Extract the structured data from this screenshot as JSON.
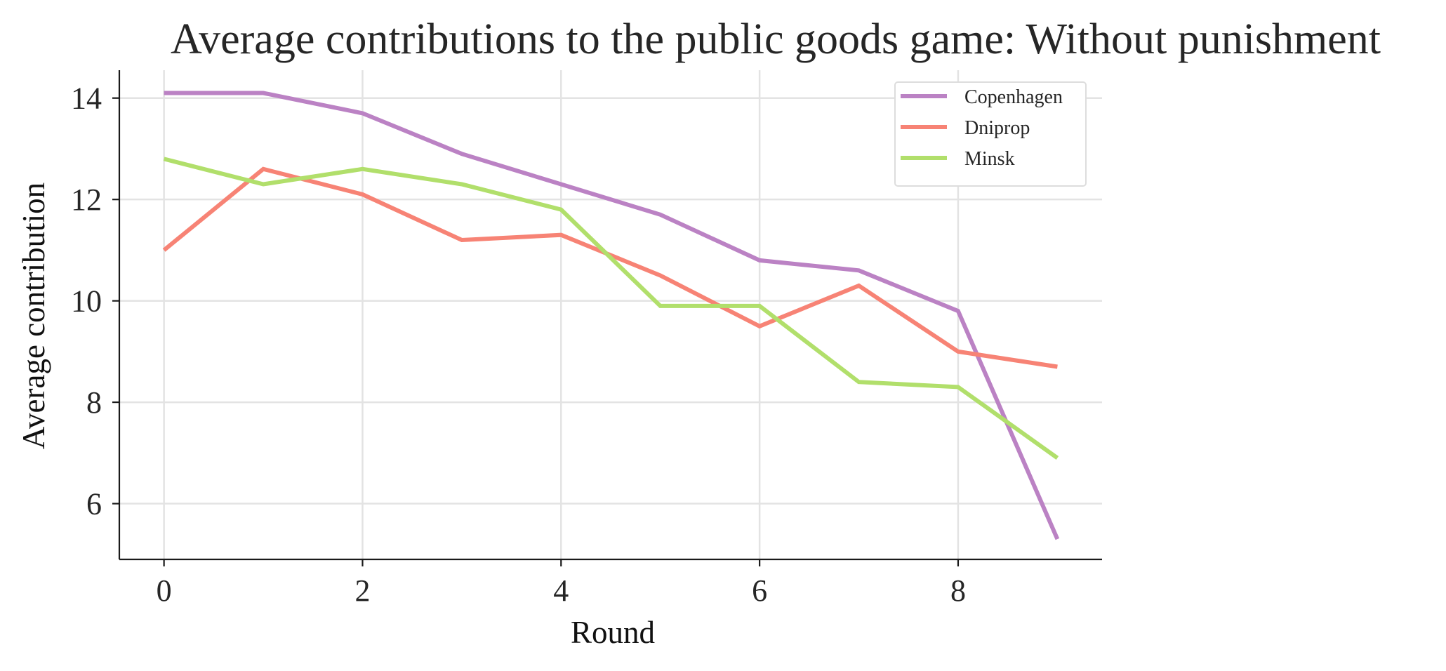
{
  "chart_data": {
    "type": "line",
    "title": "Average contributions to the public goods game: Without punishment",
    "xlabel": "Round",
    "ylabel": "Average contribution",
    "x": [
      0,
      1,
      2,
      3,
      4,
      5,
      6,
      7,
      8,
      9
    ],
    "xlim": [
      -0.45,
      9.45
    ],
    "ylim": [
      4.9,
      14.55
    ],
    "xticks": [
      0,
      2,
      4,
      6,
      8
    ],
    "yticks": [
      6,
      8,
      10,
      12,
      14
    ],
    "grid": true,
    "legend_position": "top-right",
    "series": [
      {
        "name": "Copenhagen",
        "color": "#bb82c4",
        "values": [
          14.1,
          14.1,
          13.7,
          12.9,
          12.3,
          11.7,
          10.8,
          10.6,
          9.8,
          5.3
        ]
      },
      {
        "name": "Dniprop",
        "color": "#f78375",
        "values": [
          11.0,
          12.6,
          12.1,
          11.2,
          11.3,
          10.5,
          9.5,
          10.3,
          9.0,
          8.7
        ]
      },
      {
        "name": "Minsk",
        "color": "#b1df6b",
        "values": [
          12.8,
          12.3,
          12.6,
          12.3,
          11.8,
          9.9,
          9.9,
          8.4,
          8.3,
          6.9
        ]
      }
    ]
  }
}
